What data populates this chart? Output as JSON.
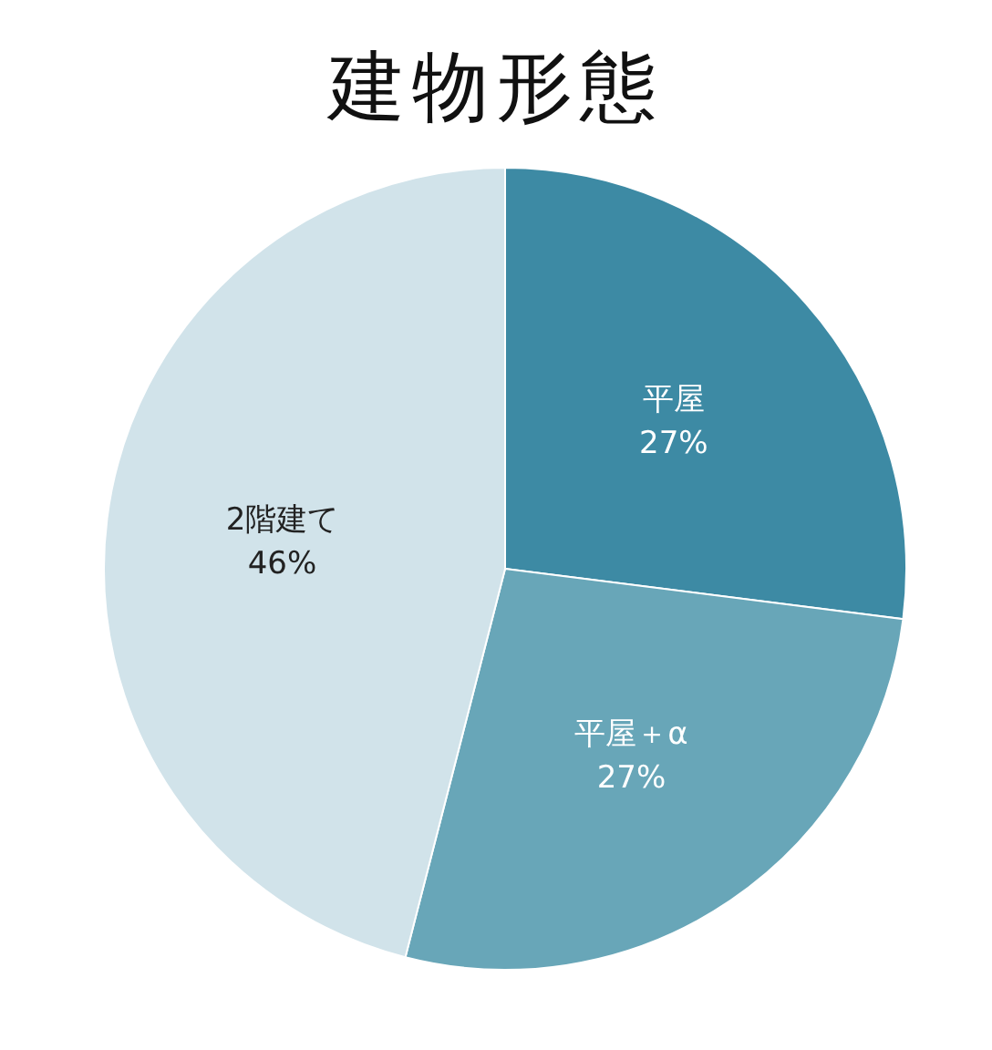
{
  "chart_data": {
    "type": "pie",
    "title": "建物形態",
    "categories": [
      "平屋",
      "平屋＋α",
      "2階建て"
    ],
    "values": [
      27,
      27,
      46
    ],
    "value_labels": [
      "27%",
      "27%",
      "46%"
    ],
    "colors": [
      "#3d8aa4",
      "#68a6b8",
      "#d1e3ea"
    ]
  }
}
